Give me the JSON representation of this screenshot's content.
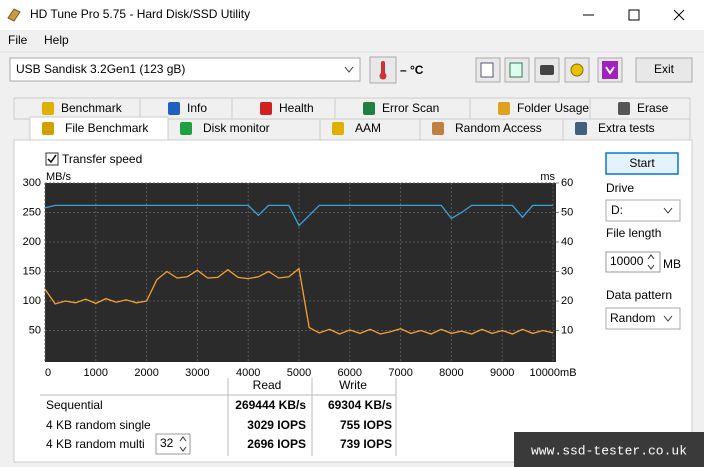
{
  "window": {
    "title": "HD Tune Pro 5.75 - Hard Disk/SSD Utility"
  },
  "menu": [
    "File",
    "Help"
  ],
  "toolbar": {
    "drive": "USB Sandisk 3.2Gen1 (123 gB)",
    "temperature": "– °C",
    "exit": "Exit"
  },
  "tabs": {
    "row1": [
      "Benchmark",
      "Info",
      "Health",
      "Error Scan",
      "Folder Usage",
      "Erase"
    ],
    "row2": [
      "File Benchmark",
      "Disk monitor",
      "AAM",
      "Random Access",
      "Extra tests"
    ]
  },
  "options": {
    "transfer_speed": "Transfer speed"
  },
  "chart_data": {
    "type": "line",
    "y_unit": "MB/s",
    "y2_unit": "ms",
    "x": [
      0,
      200,
      400,
      600,
      800,
      1000,
      1200,
      1400,
      1600,
      1800,
      2000,
      2200,
      2400,
      2600,
      2800,
      3000,
      3200,
      3400,
      3600,
      3800,
      4000,
      4200,
      4400,
      4600,
      4800,
      5000,
      5200,
      5400,
      5600,
      5800,
      6000,
      6200,
      6400,
      6600,
      6800,
      7000,
      7200,
      7400,
      7600,
      7800,
      8000,
      8200,
      8400,
      8600,
      8800,
      9000,
      9200,
      9400,
      9600,
      9800,
      10000
    ],
    "series": [
      {
        "color": "#f5a032",
        "values": [
          120,
          95,
          100,
          97,
          103,
          96,
          104,
          98,
          102,
          97,
          100,
          136,
          150,
          139,
          141,
          152,
          139,
          140,
          153,
          140,
          138,
          141,
          150,
          139,
          141,
          155,
          55,
          46,
          52,
          44,
          51,
          45,
          52,
          44,
          48,
          53,
          45,
          50,
          44,
          52,
          45,
          49,
          44,
          52,
          45,
          50,
          44,
          52,
          45,
          50,
          46
        ]
      },
      {
        "color": "#3aa2dc",
        "values": [
          258,
          262,
          262,
          262,
          262,
          262,
          262,
          262,
          262,
          262,
          262,
          262,
          262,
          262,
          262,
          262,
          262,
          262,
          262,
          262,
          262,
          245,
          262,
          262,
          262,
          228,
          245,
          262,
          262,
          262,
          262,
          262,
          262,
          262,
          262,
          262,
          262,
          262,
          262,
          262,
          240,
          250,
          262,
          262,
          262,
          262,
          262,
          242,
          262,
          262,
          262
        ]
      }
    ],
    "xlim": [
      0,
      10000
    ],
    "xticks": [
      0,
      1000,
      2000,
      3000,
      4000,
      5000,
      6000,
      7000,
      8000,
      9000,
      {
        "value": 10000,
        "label": "10000mB"
      }
    ],
    "ylim": [
      0,
      300
    ],
    "yticks": [
      50,
      100,
      150,
      200,
      250,
      300
    ],
    "y2lim": [
      0,
      60
    ],
    "y2ticks": [
      10,
      20,
      30,
      40,
      50,
      60
    ],
    "grid": true
  },
  "results": {
    "headers": [
      "Read",
      "Write"
    ],
    "rows": [
      {
        "label": "Sequential",
        "read": "269444 KB/s",
        "write": "69304 KB/s"
      },
      {
        "label": "4 KB random single",
        "read": "3029 IOPS",
        "write": "755 IOPS"
      },
      {
        "label": "4 KB random multi",
        "read": "2696 IOPS",
        "write": "739 IOPS"
      }
    ],
    "queue_depth": 32
  },
  "side_panel": {
    "start": "Start",
    "drive_label": "Drive",
    "drive": "D:",
    "file_length_label": "File length",
    "file_length": 10000,
    "file_length_unit": "MB",
    "data_pattern_label": "Data pattern",
    "data_pattern": "Random"
  },
  "watermark": "www.ssd-tester.co.uk"
}
